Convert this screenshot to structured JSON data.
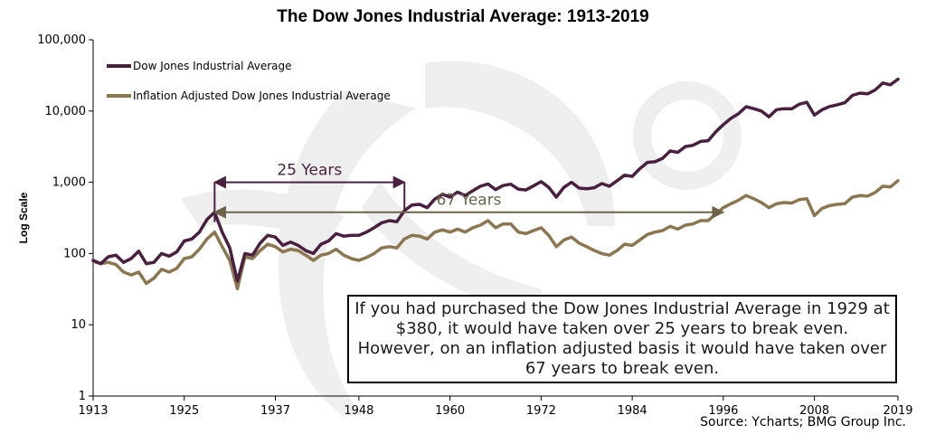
{
  "chart_data": {
    "type": "line",
    "title": "The Dow Jones Industrial Average: 1913-2019",
    "ylabel": "Log Scale",
    "xlabel": "",
    "y_scale": "log",
    "ylim": [
      1,
      100000
    ],
    "xlim": [
      1913,
      2019
    ],
    "y_ticks": [
      1,
      10,
      100,
      1000,
      10000,
      100000
    ],
    "y_tick_labels": [
      "1",
      "10",
      "100",
      "1,000",
      "10,000",
      "100,000"
    ],
    "x_ticks": [
      1913,
      1925,
      1937,
      1948,
      1960,
      1972,
      1984,
      1996,
      2008,
      2019
    ],
    "legend_position": "top-left",
    "grid": false,
    "series": [
      {
        "name": "Dow Jones Industrial Average",
        "color": "#4a2040",
        "points": [
          [
            1913,
            80
          ],
          [
            1914,
            72
          ],
          [
            1915,
            90
          ],
          [
            1916,
            95
          ],
          [
            1917,
            75
          ],
          [
            1918,
            85
          ],
          [
            1919,
            108
          ],
          [
            1920,
            72
          ],
          [
            1921,
            75
          ],
          [
            1922,
            100
          ],
          [
            1923,
            92
          ],
          [
            1924,
            105
          ],
          [
            1925,
            150
          ],
          [
            1926,
            160
          ],
          [
            1927,
            200
          ],
          [
            1928,
            300
          ],
          [
            1929,
            380
          ],
          [
            1930,
            200
          ],
          [
            1931,
            120
          ],
          [
            1932,
            41
          ],
          [
            1933,
            100
          ],
          [
            1934,
            95
          ],
          [
            1935,
            140
          ],
          [
            1936,
            180
          ],
          [
            1937,
            170
          ],
          [
            1938,
            130
          ],
          [
            1939,
            145
          ],
          [
            1940,
            130
          ],
          [
            1941,
            110
          ],
          [
            1942,
            100
          ],
          [
            1943,
            135
          ],
          [
            1944,
            150
          ],
          [
            1945,
            190
          ],
          [
            1946,
            175
          ],
          [
            1947,
            180
          ],
          [
            1948,
            180
          ],
          [
            1949,
            200
          ],
          [
            1950,
            230
          ],
          [
            1951,
            270
          ],
          [
            1952,
            290
          ],
          [
            1953,
            280
          ],
          [
            1954,
            400
          ],
          [
            1955,
            480
          ],
          [
            1956,
            490
          ],
          [
            1957,
            440
          ],
          [
            1958,
            580
          ],
          [
            1959,
            680
          ],
          [
            1960,
            620
          ],
          [
            1961,
            730
          ],
          [
            1962,
            650
          ],
          [
            1963,
            760
          ],
          [
            1964,
            880
          ],
          [
            1965,
            950
          ],
          [
            1966,
            790
          ],
          [
            1967,
            900
          ],
          [
            1968,
            940
          ],
          [
            1969,
            800
          ],
          [
            1970,
            780
          ],
          [
            1971,
            890
          ],
          [
            1972,
            1020
          ],
          [
            1973,
            850
          ],
          [
            1974,
            620
          ],
          [
            1975,
            850
          ],
          [
            1976,
            1000
          ],
          [
            1977,
            830
          ],
          [
            1978,
            810
          ],
          [
            1979,
            840
          ],
          [
            1980,
            960
          ],
          [
            1981,
            880
          ],
          [
            1982,
            1050
          ],
          [
            1983,
            1260
          ],
          [
            1984,
            1210
          ],
          [
            1985,
            1550
          ],
          [
            1986,
            1900
          ],
          [
            1987,
            1940
          ],
          [
            1988,
            2170
          ],
          [
            1989,
            2750
          ],
          [
            1990,
            2630
          ],
          [
            1991,
            3170
          ],
          [
            1992,
            3300
          ],
          [
            1993,
            3750
          ],
          [
            1994,
            3830
          ],
          [
            1995,
            5100
          ],
          [
            1996,
            6450
          ],
          [
            1997,
            7900
          ],
          [
            1998,
            9200
          ],
          [
            1999,
            11500
          ],
          [
            2000,
            10800
          ],
          [
            2001,
            10000
          ],
          [
            2002,
            8300
          ],
          [
            2003,
            10450
          ],
          [
            2004,
            10780
          ],
          [
            2005,
            10720
          ],
          [
            2006,
            12460
          ],
          [
            2007,
            13260
          ],
          [
            2008,
            8780
          ],
          [
            2009,
            10430
          ],
          [
            2010,
            11580
          ],
          [
            2011,
            12220
          ],
          [
            2012,
            13100
          ],
          [
            2013,
            16580
          ],
          [
            2014,
            17820
          ],
          [
            2015,
            17420
          ],
          [
            2016,
            19760
          ],
          [
            2017,
            24720
          ],
          [
            2018,
            23330
          ],
          [
            2019,
            28000
          ]
        ]
      },
      {
        "name": "Inflation Adjusted Dow Jones Industrial Average",
        "color": "#8c7650",
        "points": [
          [
            1913,
            78
          ],
          [
            1914,
            72
          ],
          [
            1915,
            75
          ],
          [
            1916,
            70
          ],
          [
            1917,
            55
          ],
          [
            1918,
            50
          ],
          [
            1919,
            55
          ],
          [
            1920,
            38
          ],
          [
            1921,
            45
          ],
          [
            1922,
            60
          ],
          [
            1923,
            55
          ],
          [
            1924,
            62
          ],
          [
            1925,
            85
          ],
          [
            1926,
            90
          ],
          [
            1927,
            115
          ],
          [
            1928,
            160
          ],
          [
            1929,
            200
          ],
          [
            1930,
            125
          ],
          [
            1931,
            80
          ],
          [
            1932,
            32
          ],
          [
            1933,
            90
          ],
          [
            1934,
            85
          ],
          [
            1935,
            110
          ],
          [
            1936,
            135
          ],
          [
            1937,
            125
          ],
          [
            1938,
            105
          ],
          [
            1939,
            115
          ],
          [
            1940,
            110
          ],
          [
            1941,
            95
          ],
          [
            1942,
            80
          ],
          [
            1943,
            95
          ],
          [
            1944,
            100
          ],
          [
            1945,
            115
          ],
          [
            1946,
            95
          ],
          [
            1947,
            85
          ],
          [
            1948,
            80
          ],
          [
            1949,
            88
          ],
          [
            1950,
            100
          ],
          [
            1951,
            120
          ],
          [
            1952,
            125
          ],
          [
            1953,
            120
          ],
          [
            1954,
            160
          ],
          [
            1955,
            180
          ],
          [
            1956,
            175
          ],
          [
            1957,
            160
          ],
          [
            1958,
            200
          ],
          [
            1959,
            215
          ],
          [
            1960,
            200
          ],
          [
            1961,
            220
          ],
          [
            1962,
            200
          ],
          [
            1963,
            230
          ],
          [
            1964,
            250
          ],
          [
            1965,
            290
          ],
          [
            1966,
            230
          ],
          [
            1967,
            260
          ],
          [
            1968,
            260
          ],
          [
            1969,
            200
          ],
          [
            1970,
            190
          ],
          [
            1971,
            210
          ],
          [
            1972,
            230
          ],
          [
            1973,
            180
          ],
          [
            1974,
            125
          ],
          [
            1975,
            155
          ],
          [
            1976,
            170
          ],
          [
            1977,
            140
          ],
          [
            1978,
            125
          ],
          [
            1979,
            110
          ],
          [
            1980,
            100
          ],
          [
            1981,
            95
          ],
          [
            1982,
            110
          ],
          [
            1983,
            135
          ],
          [
            1984,
            130
          ],
          [
            1985,
            155
          ],
          [
            1986,
            185
          ],
          [
            1987,
            200
          ],
          [
            1988,
            210
          ],
          [
            1989,
            240
          ],
          [
            1990,
            220
          ],
          [
            1991,
            250
          ],
          [
            1992,
            260
          ],
          [
            1993,
            290
          ],
          [
            1994,
            290
          ],
          [
            1995,
            360
          ],
          [
            1996,
            440
          ],
          [
            1997,
            500
          ],
          [
            1998,
            560
          ],
          [
            1999,
            650
          ],
          [
            2000,
            590
          ],
          [
            2001,
            520
          ],
          [
            2002,
            440
          ],
          [
            2003,
            500
          ],
          [
            2004,
            520
          ],
          [
            2005,
            510
          ],
          [
            2006,
            570
          ],
          [
            2007,
            590
          ],
          [
            2008,
            340
          ],
          [
            2009,
            430
          ],
          [
            2010,
            470
          ],
          [
            2011,
            490
          ],
          [
            2012,
            500
          ],
          [
            2013,
            620
          ],
          [
            2014,
            650
          ],
          [
            2015,
            640
          ],
          [
            2016,
            720
          ],
          [
            2017,
            880
          ],
          [
            2018,
            860
          ],
          [
            2019,
            1050
          ]
        ]
      }
    ],
    "annotations": [
      {
        "text": "25 Years",
        "x_start": 1929,
        "x_end": 1954,
        "y": 1000,
        "color": "#4a2040"
      },
      {
        "text": "67 Years",
        "x_start": 1929,
        "x_end": 1996,
        "y": 380,
        "color": "#6b6248"
      }
    ]
  },
  "note": {
    "lines": [
      "If you had purchased the Dow Jones Industrial Average in 1929 at",
      "$380, it would have taken over 25 years to break even.",
      "However, on an inflation adjusted basis it would have taken over",
      "67 years to break even."
    ]
  },
  "source": "Source: Ycharts; BMG Group Inc."
}
